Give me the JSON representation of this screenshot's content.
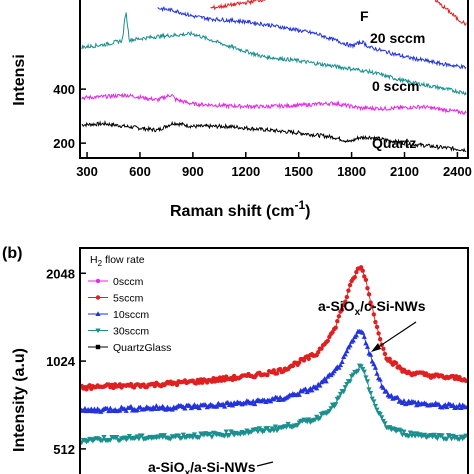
{
  "chart_data": [
    {
      "panel": "a",
      "type": "line",
      "xlabel": "Raman shift (cm",
      "xlabel_exp": "-1",
      "xlabel_close": ")",
      "ylabel": "Intensi",
      "x_ticks": [
        300,
        600,
        900,
        1200,
        1500,
        1800,
        2100,
        2400
      ],
      "y_ticks": [
        200,
        400
      ],
      "xlim": [
        260,
        2460
      ],
      "ylim": [
        145,
        730
      ],
      "grid": false,
      "series": [
        {
          "name": "Quartz",
          "color": "#000000",
          "x": [
            270,
            400,
            520,
            700,
            790,
            900,
            1100,
            1300,
            1500,
            1700,
            1790,
            1840,
            1900,
            2100,
            2300,
            2450
          ],
          "y": [
            268,
            272,
            262,
            248,
            275,
            262,
            262,
            250,
            238,
            222,
            205,
            220,
            222,
            200,
            185,
            175
          ]
        },
        {
          "name": "0 sccm",
          "color": "#e22be2",
          "x": [
            270,
            400,
            520,
            700,
            780,
            800,
            900,
            1100,
            1300,
            1500,
            1700,
            1850,
            2000,
            2200,
            2450
          ],
          "y": [
            368,
            372,
            378,
            360,
            380,
            362,
            345,
            338,
            335,
            340,
            348,
            330,
            328,
            335,
            312
          ]
        },
        {
          "name": "20 sccm",
          "color": "#1b8f8f",
          "x": [
            270,
            400,
            500,
            520,
            540,
            700,
            900,
            1100,
            1300,
            1500,
            1700,
            1900,
            2100,
            2300,
            2450
          ],
          "y": [
            555,
            565,
            580,
            690,
            582,
            595,
            605,
            560,
            520,
            505,
            485,
            465,
            430,
            405,
            385
          ]
        },
        {
          "name": "F",
          "color": "#2233dd",
          "x": [
            700,
            800,
            900,
            1000,
            1200,
            1400,
            1600,
            1800,
            1860,
            1900,
            2100,
            2300,
            2450
          ],
          "y": [
            700,
            690,
            670,
            660,
            650,
            630,
            605,
            560,
            575,
            555,
            520,
            495,
            480
          ]
        },
        {
          "name": "",
          "color": "#e02020",
          "x": [
            1000,
            1100,
            1200,
            1400
          ],
          "y": [
            700,
            710,
            720,
            745
          ]
        },
        {
          "name": "",
          "color": "#e02020",
          "x": [
            2250,
            2300,
            2350,
            2400,
            2450
          ],
          "y": [
            745,
            715,
            690,
            660,
            640
          ]
        }
      ],
      "annotations": [
        "F",
        "20 sccm",
        "0 sccm",
        "Quartz"
      ]
    },
    {
      "panel": "b",
      "type": "line",
      "panel_label": "(b)",
      "ylabel": "Intensity (a.u)",
      "y_ticks": [
        512,
        1024,
        2048
      ],
      "xlim": [
        260,
        2460
      ],
      "legend_title": "H",
      "legend_title_sub": "2",
      "legend_title_rest": " flow rate",
      "legend_placement": "top-left",
      "series": [
        {
          "name": "0sccm",
          "color": "#e22be2",
          "marker": "circle",
          "x": [],
          "y": []
        },
        {
          "name": "5sccm",
          "color": "#e02020",
          "marker": "circle",
          "x": [
            270,
            400,
            600,
            800,
            1000,
            1200,
            1400,
            1600,
            1700,
            1760,
            1800,
            1830,
            1850,
            1870,
            1900,
            1950,
            2000,
            2100,
            2300,
            2450
          ],
          "y": [
            830,
            838,
            845,
            860,
            880,
            905,
            950,
            1080,
            1300,
            1620,
            1900,
            2080,
            2150,
            2050,
            1720,
            1280,
            1050,
            940,
            905,
            890
          ]
        },
        {
          "name": "10sccm",
          "color": "#2233dd",
          "marker": "triangle-up",
          "x": [
            270,
            400,
            600,
            800,
            1000,
            1200,
            1400,
            1600,
            1700,
            1760,
            1800,
            1830,
            1850,
            1870,
            1900,
            1950,
            2000,
            2100,
            2300,
            2450
          ],
          "y": [
            690,
            698,
            705,
            710,
            720,
            735,
            760,
            830,
            930,
            1050,
            1180,
            1260,
            1300,
            1250,
            1100,
            900,
            790,
            740,
            720,
            712
          ]
        },
        {
          "name": "30sccm",
          "color": "#1b8f8f",
          "marker": "triangle-down",
          "x": [
            270,
            400,
            600,
            800,
            1000,
            1200,
            1400,
            1600,
            1700,
            1760,
            1800,
            1830,
            1850,
            1870,
            1900,
            1950,
            2000,
            2100,
            2300,
            2450
          ],
          "y": [
            548,
            555,
            560,
            565,
            572,
            585,
            605,
            650,
            720,
            820,
            900,
            950,
            980,
            935,
            820,
            680,
            610,
            578,
            565,
            560
          ]
        },
        {
          "name": "QuartzGlass",
          "color": "#000000",
          "marker": "square",
          "x": [],
          "y": []
        }
      ],
      "annotations": {
        "sio_prefix": "a-SiO",
        "sio_sub": "x",
        "sio_suffix": "/c-Si-NWs",
        "bottom_prefix": "a-SiO",
        "bottom_sub": "x",
        "bottom_suffix": "/a-Si-NWs"
      }
    }
  ]
}
